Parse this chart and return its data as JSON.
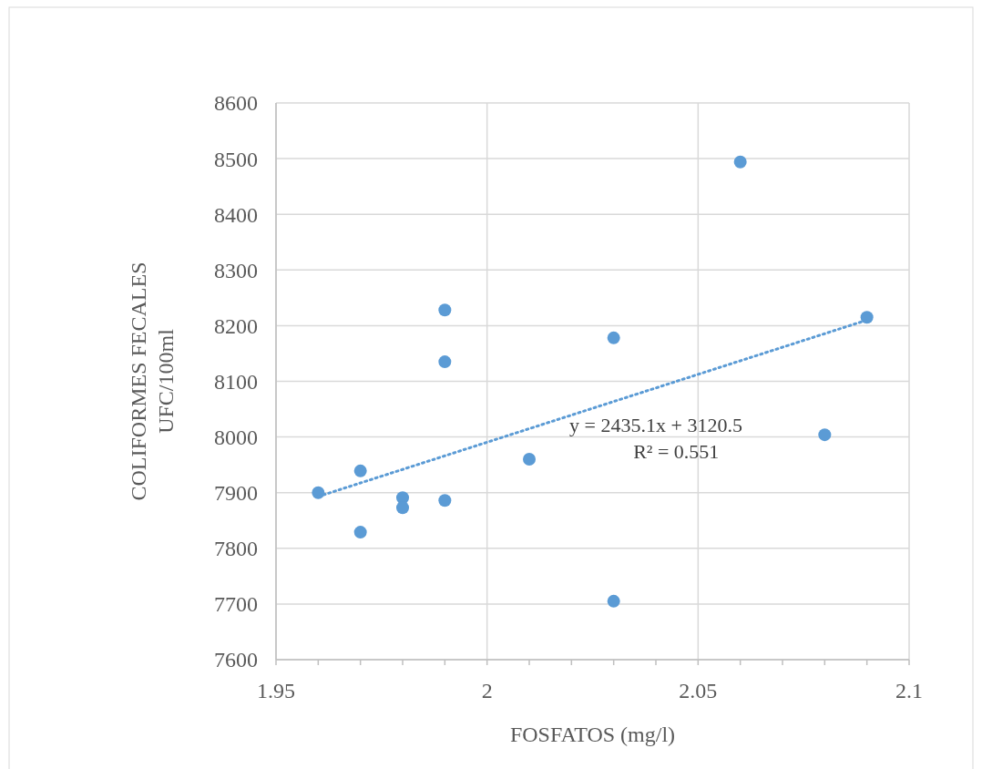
{
  "chart_data": {
    "type": "scatter",
    "xlabel": "FOSFATOS (mg/l)",
    "ylabel": "COLIFORMES FECALES UFC/100ml",
    "xlim": [
      1.95,
      2.1
    ],
    "ylim": [
      7600,
      8600
    ],
    "xticks": [
      1.95,
      {
        "value": 1.96,
        "label": null
      },
      {
        "value": 1.97,
        "label": null
      },
      {
        "value": 1.98,
        "label": null
      },
      {
        "value": 1.99,
        "label": null
      },
      2,
      {
        "value": 2.01,
        "label": null
      },
      {
        "value": 2.02,
        "label": null
      },
      {
        "value": 2.03,
        "label": null
      },
      {
        "value": 2.04,
        "label": null
      },
      2.05,
      {
        "value": 2.06,
        "label": null
      },
      {
        "value": 2.07,
        "label": null
      },
      {
        "value": 2.08,
        "label": null
      },
      {
        "value": 2.09,
        "label": null
      },
      2.1
    ],
    "yticks": [
      7600,
      7700,
      7800,
      7900,
      8000,
      8100,
      8200,
      8300,
      8400,
      8500,
      8600
    ],
    "grid": true,
    "series": [
      {
        "color": "#5b9bd5",
        "marker": "circle",
        "x": [
          1.96,
          1.97,
          1.97,
          1.98,
          1.98,
          1.99,
          1.99,
          1.99,
          2.01,
          2.03,
          2.03,
          2.06,
          2.08,
          2.09
        ],
        "values": [
          7900,
          7939,
          7829,
          7891,
          7873,
          8228,
          8135,
          7886,
          7960,
          8178,
          7705,
          8494,
          8004,
          8215
        ]
      },
      {
        "type": "line",
        "color": "#5b9bd5",
        "line_style": "dotted",
        "marker": "none",
        "x": [
          1.96,
          2.09
        ],
        "values": [
          7893,
          8210
        ]
      }
    ],
    "annotations": [
      "y = 2435.1x + 3120.5",
      "R² = 0.551"
    ]
  }
}
